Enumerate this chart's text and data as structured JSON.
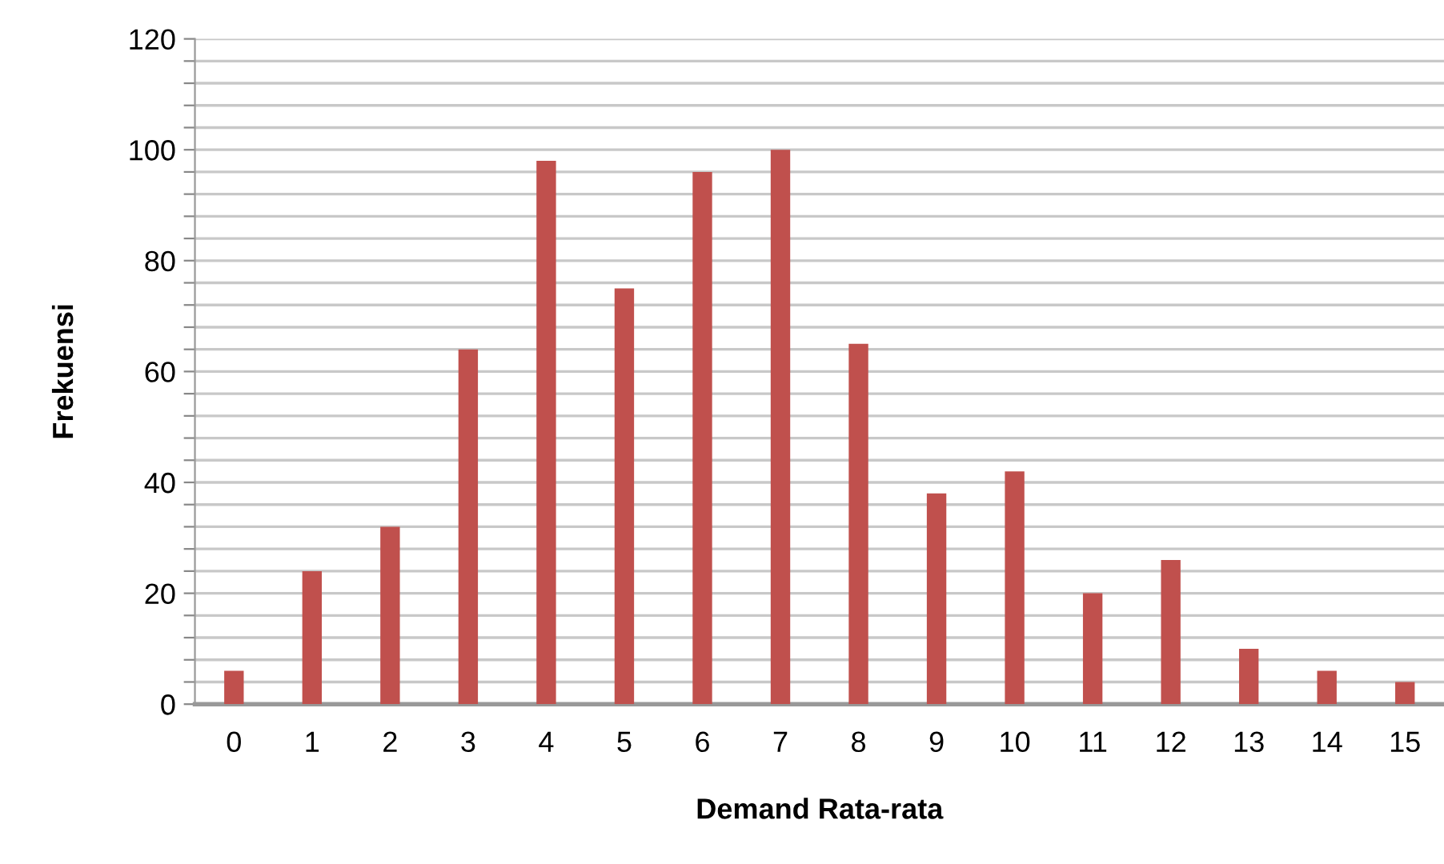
{
  "chart_data": {
    "type": "bar",
    "xlabel": "Demand Rata-rata",
    "ylabel": "Frekuensi",
    "categories": [
      "0",
      "1",
      "2",
      "3",
      "4",
      "5",
      "6",
      "7",
      "8",
      "9",
      "10",
      "11",
      "12",
      "13",
      "14",
      "15"
    ],
    "values": [
      6,
      24,
      32,
      64,
      98,
      75,
      96,
      100,
      65,
      38,
      42,
      20,
      26,
      10,
      6,
      4
    ],
    "color": "#c0504d",
    "ylim": [
      0,
      120
    ],
    "yticks": [
      0,
      {
        "value": 4,
        "label": null
      },
      {
        "value": 8,
        "label": null
      },
      {
        "value": 12,
        "label": null
      },
      {
        "value": 16,
        "label": null
      },
      20,
      {
        "value": 24,
        "label": null
      },
      {
        "value": 28,
        "label": null
      },
      {
        "value": 32,
        "label": null
      },
      {
        "value": 36,
        "label": null
      },
      40,
      {
        "value": 44,
        "label": null
      },
      {
        "value": 48,
        "label": null
      },
      {
        "value": 52,
        "label": null
      },
      {
        "value": 56,
        "label": null
      },
      60,
      {
        "value": 64,
        "label": null
      },
      {
        "value": 68,
        "label": null
      },
      {
        "value": 72,
        "label": null
      },
      {
        "value": 76,
        "label": null
      },
      80,
      {
        "value": 84,
        "label": null
      },
      {
        "value": 88,
        "label": null
      },
      {
        "value": 92,
        "label": null
      },
      {
        "value": 96,
        "label": null
      },
      100,
      {
        "value": 104,
        "label": null
      },
      {
        "value": 108,
        "label": null
      },
      {
        "value": 112,
        "label": null
      },
      {
        "value": 116,
        "label": null
      },
      120
    ],
    "grid": "y",
    "legend": false
  }
}
